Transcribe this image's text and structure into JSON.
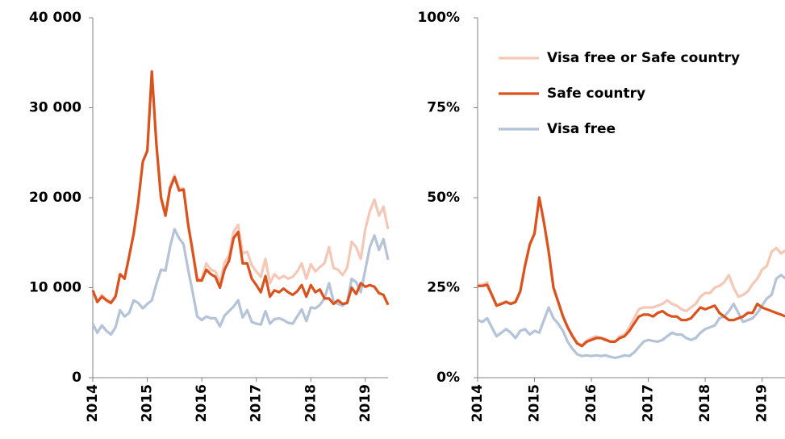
{
  "chart_data": [
    {
      "type": "line",
      "x": [
        2014,
        2014.083,
        2014.167,
        2014.25,
        2014.333,
        2014.417,
        2014.5,
        2014.583,
        2014.667,
        2014.75,
        2014.833,
        2014.917,
        2015,
        2015.083,
        2015.167,
        2015.25,
        2015.333,
        2015.417,
        2015.5,
        2015.583,
        2015.667,
        2015.75,
        2015.833,
        2015.917,
        2016,
        2016.083,
        2016.167,
        2016.25,
        2016.333,
        2016.417,
        2016.5,
        2016.583,
        2016.667,
        2016.75,
        2016.833,
        2016.917,
        2017,
        2017.083,
        2017.167,
        2017.25,
        2017.333,
        2017.417,
        2017.5,
        2017.583,
        2017.667,
        2017.75,
        2017.833,
        2017.917,
        2018,
        2018.083,
        2018.167,
        2018.25,
        2018.333,
        2018.417,
        2018.5,
        2018.583,
        2018.667,
        2018.75,
        2018.833,
        2018.917,
        2019,
        2019.083,
        2019.167,
        2019.25,
        2019.333,
        2019.417
      ],
      "series": [
        {
          "color": "#f4c7b6",
          "values": [
            9700,
            8500,
            9200,
            8700,
            8400,
            9100,
            11500,
            11100,
            13500,
            16000,
            19500,
            24000,
            25300,
            34100,
            26100,
            20200,
            18200,
            21200,
            22500,
            21000,
            21000,
            17200,
            14200,
            11000,
            11000,
            12700,
            12000,
            11800,
            10500,
            12800,
            13600,
            16200,
            17000,
            13800,
            14000,
            12500,
            11800,
            11200,
            13200,
            10500,
            11500,
            11000,
            11300,
            11000,
            11200,
            11800,
            12700,
            11000,
            12600,
            11800,
            12300,
            12700,
            14500,
            12200,
            12000,
            11400,
            12200,
            15100,
            14500,
            13200,
            16500,
            18500,
            19800,
            18000,
            19000,
            16500
          ]
        },
        {
          "color": "#d9531e",
          "values": [
            9700,
            8400,
            9000,
            8600,
            8300,
            9000,
            11500,
            11000,
            13500,
            16000,
            19500,
            24000,
            25200,
            34000,
            26000,
            20000,
            18000,
            21000,
            22300,
            20800,
            20900,
            17000,
            14000,
            10800,
            10800,
            12000,
            11500,
            11200,
            10000,
            12000,
            13000,
            15500,
            16200,
            12700,
            12700,
            11000,
            10300,
            9500,
            11300,
            9000,
            9700,
            9500,
            9900,
            9500,
            9200,
            9600,
            10300,
            9000,
            10300,
            9500,
            9800,
            8800,
            8800,
            8200,
            8600,
            8200,
            8300,
            10000,
            9300,
            10500,
            10100,
            10300,
            10100,
            9400,
            9200,
            8100
          ]
        },
        {
          "color": "#b4c3d8",
          "values": [
            6000,
            5000,
            5800,
            5200,
            4800,
            5600,
            7500,
            6800,
            7200,
            8600,
            8300,
            7700,
            8200,
            8600,
            10400,
            12000,
            11900,
            14500,
            16500,
            15500,
            14800,
            12000,
            9500,
            6800,
            6400,
            6800,
            6600,
            6600,
            5700,
            6900,
            7400,
            7900,
            8600,
            6700,
            7500,
            6200,
            6000,
            5900,
            7400,
            6000,
            6500,
            6600,
            6400,
            6100,
            6000,
            6800,
            7600,
            6300,
            7800,
            7700,
            8100,
            8800,
            10500,
            8500,
            8200,
            8000,
            8400,
            11000,
            10600,
            9500,
            12000,
            14500,
            15800,
            14200,
            15400,
            13100
          ]
        }
      ],
      "xlim": [
        2014,
        2019.417
      ],
      "xticks": [
        2014,
        2015,
        2016,
        2017,
        2018,
        2019
      ],
      "ylim": [
        0,
        40000
      ],
      "yticks": [
        0,
        {
          "value": 10000,
          "label": "10 000"
        },
        {
          "value": 20000,
          "label": "20 000"
        },
        {
          "value": 30000,
          "label": "30 000"
        },
        {
          "value": 40000,
          "label": "40 000"
        }
      ]
    },
    {
      "type": "line",
      "x": [
        2014,
        2014.083,
        2014.167,
        2014.25,
        2014.333,
        2014.417,
        2014.5,
        2014.583,
        2014.667,
        2014.75,
        2014.833,
        2014.917,
        2015,
        2015.083,
        2015.167,
        2015.25,
        2015.333,
        2015.417,
        2015.5,
        2015.583,
        2015.667,
        2015.75,
        2015.833,
        2015.917,
        2016,
        2016.083,
        2016.167,
        2016.25,
        2016.333,
        2016.417,
        2016.5,
        2016.583,
        2016.667,
        2016.75,
        2016.833,
        2016.917,
        2017,
        2017.083,
        2017.167,
        2017.25,
        2017.333,
        2017.417,
        2017.5,
        2017.583,
        2017.667,
        2017.75,
        2017.833,
        2017.917,
        2018,
        2018.083,
        2018.167,
        2018.25,
        2018.333,
        2018.417,
        2018.5,
        2018.583,
        2018.667,
        2018.75,
        2018.833,
        2018.917,
        2019,
        2019.083,
        2019.167,
        2019.25,
        2019.333,
        2019.417
      ],
      "series": [
        {
          "name": "Visa free or Safe country",
          "color": "#f4c7b6",
          "values": [
            25.8,
            25.8,
            26.5,
            23.2,
            20.2,
            20.7,
            21.2,
            20.7,
            21.2,
            24.2,
            31.2,
            37.2,
            40.2,
            50.2,
            43.2,
            35.2,
            25.2,
            21.2,
            17.2,
            14.2,
            11.7,
            9.7,
            9,
            10.3,
            11,
            11.5,
            11,
            10.8,
            10,
            10,
            11.5,
            12,
            14,
            16.5,
            19,
            19.5,
            19.5,
            19.5,
            20,
            20.5,
            21.5,
            20.5,
            20,
            19,
            18.5,
            19.5,
            20.5,
            22.5,
            23.5,
            23.5,
            25,
            25.5,
            26.5,
            28.5,
            25,
            22.5,
            23,
            24,
            26,
            27.5,
            30,
            31,
            35,
            36,
            34.5,
            35.5
          ]
        },
        {
          "name": "Safe country",
          "color": "#d9531e",
          "values": [
            25.5,
            25.5,
            25.8,
            23,
            20,
            20.5,
            21,
            20.5,
            21,
            24,
            31,
            37,
            40,
            50,
            43,
            35,
            25,
            21,
            17,
            14,
            11.5,
            9.5,
            8.8,
            10,
            10.5,
            11,
            11,
            10.5,
            10,
            10,
            11,
            11.5,
            13,
            15,
            17,
            17.5,
            17.5,
            17,
            18,
            18.5,
            17.5,
            17,
            17,
            16,
            16,
            16.5,
            18,
            19.5,
            19,
            19.5,
            20,
            18,
            17,
            16,
            16,
            16.5,
            17,
            18,
            18,
            20.5,
            19.5,
            19,
            18.5,
            18,
            17.5,
            17
          ]
        },
        {
          "name": "Visa free",
          "color": "#b4c3d8",
          "values": [
            16,
            15.5,
            16.5,
            14,
            11.5,
            12.5,
            13.5,
            12.5,
            11,
            13,
            13.5,
            12,
            13,
            12.5,
            16,
            19.5,
            16.5,
            15,
            13,
            10,
            8,
            6.5,
            6,
            6.2,
            6,
            6.2,
            6,
            6.2,
            5.8,
            5.5,
            5.8,
            6.2,
            6,
            7,
            8.5,
            10,
            10.5,
            10.2,
            10,
            10.5,
            11.5,
            12.5,
            12,
            12,
            11,
            10.5,
            11,
            12.5,
            13.5,
            14,
            14.5,
            16.5,
            17,
            18.5,
            20.5,
            18,
            15.5,
            16,
            16.5,
            18,
            20,
            22,
            23,
            27.5,
            28.5,
            27.5
          ]
        }
      ],
      "xlim": [
        2014,
        2019.417
      ],
      "xticks": [
        2014,
        2015,
        2016,
        2017,
        2018,
        2019
      ],
      "ylim": [
        0,
        100
      ],
      "yticks": [
        {
          "value": 0,
          "label": "0%"
        },
        {
          "value": 25,
          "label": "25%"
        },
        {
          "value": 50,
          "label": "50%"
        },
        {
          "value": 75,
          "label": "75%"
        },
        {
          "value": 100,
          "label": "100%"
        }
      ],
      "legend": "top-left"
    }
  ]
}
